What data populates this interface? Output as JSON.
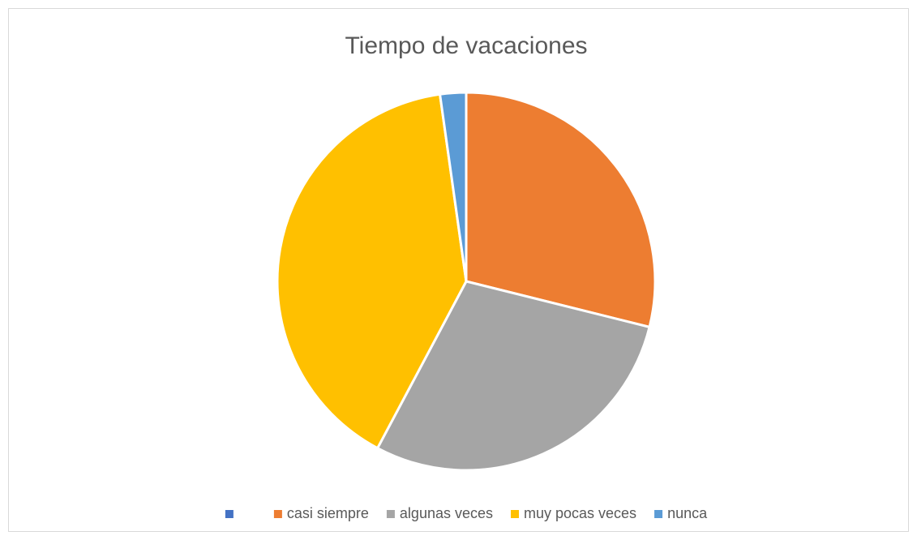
{
  "chart_data": {
    "type": "pie",
    "title": "Tiempo de vacaciones",
    "categories": [
      null,
      "casi siempre",
      "algunas veces",
      "muy pocas veces",
      "nunca"
    ],
    "values": [
      0,
      13,
      13,
      18,
      1
    ],
    "colors": [
      "#4472c4",
      "#ed7d31",
      "#a5a5a5",
      "#ffc000",
      "#5b9bd5"
    ],
    "legend": "bottom"
  }
}
